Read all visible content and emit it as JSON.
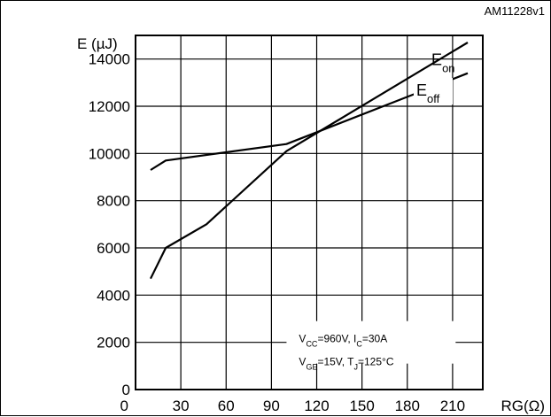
{
  "chart_data": {
    "type": "line",
    "figure_id": "AM11228v1",
    "ylabel": "E (µJ)",
    "xlabel": "RG(Ω)",
    "xlim": [
      0,
      230
    ],
    "ylim": [
      0,
      15000
    ],
    "xticks": [
      0,
      30,
      60,
      90,
      120,
      150,
      180,
      210
    ],
    "yticks": [
      0,
      2000,
      4000,
      6000,
      8000,
      10000,
      12000,
      14000
    ],
    "ytick_labels": [
      "0",
      "2000",
      "4000",
      "6000",
      "8000",
      "10000",
      "12000",
      "14000"
    ],
    "xtick_labels": [
      "0",
      "30",
      "60",
      "90",
      "120",
      "150",
      "180",
      "210"
    ],
    "grid": true,
    "series": [
      {
        "name": "E",
        "sub": "on",
        "x": [
          10,
          20,
          47,
          100,
          220
        ],
        "y": [
          4700,
          6000,
          7000,
          10100,
          14700
        ]
      },
      {
        "name": "E",
        "sub": "off",
        "x": [
          10,
          20,
          100,
          220
        ],
        "y": [
          9300,
          9700,
          10400,
          13400
        ]
      }
    ],
    "conditions": {
      "line1": [
        {
          "t": "V"
        },
        {
          "t": "CC",
          "sub": true
        },
        {
          "t": "=960V, I"
        },
        {
          "t": "C",
          "sub": true
        },
        {
          "t": "=30A"
        }
      ],
      "line2": [
        {
          "t": "V"
        },
        {
          "t": "GE",
          "sub": true
        },
        {
          "t": "=15V, T"
        },
        {
          "t": "J",
          "sub": true
        },
        {
          "t": "=125°C"
        }
      ]
    }
  }
}
